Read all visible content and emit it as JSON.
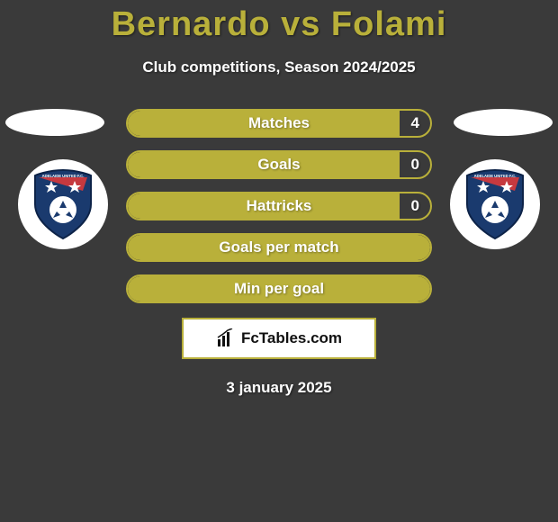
{
  "title": "Bernardo vs Folami",
  "subtitle": "Club competitions, Season 2024/2025",
  "date": "3 january 2025",
  "site": {
    "label": "FcTables.com"
  },
  "colors": {
    "accent": "#b9b03a",
    "background": "#3a3a3a",
    "text": "#ffffff",
    "badge_primary": "#1a3a6e",
    "badge_accent": "#d93a3a"
  },
  "club_badge": {
    "name": "ADELAIDE UNITED F.C.",
    "shape": "shield",
    "primary_color": "#1a3a6e",
    "star_color": "#ffffff",
    "ball_color": "#ffffff",
    "flash_color": "#d93a3a"
  },
  "stats": [
    {
      "key": "matches",
      "label": "Matches",
      "right_value": "4",
      "fill_pct": 90,
      "show_right": true
    },
    {
      "key": "goals",
      "label": "Goals",
      "right_value": "0",
      "fill_pct": 90,
      "show_right": true
    },
    {
      "key": "hattricks",
      "label": "Hattricks",
      "right_value": "0",
      "fill_pct": 90,
      "show_right": true
    },
    {
      "key": "goals_per_match",
      "label": "Goals per match",
      "right_value": "",
      "fill_pct": 100,
      "show_right": false
    },
    {
      "key": "min_per_goal",
      "label": "Min per goal",
      "right_value": "",
      "fill_pct": 100,
      "show_right": false
    }
  ]
}
